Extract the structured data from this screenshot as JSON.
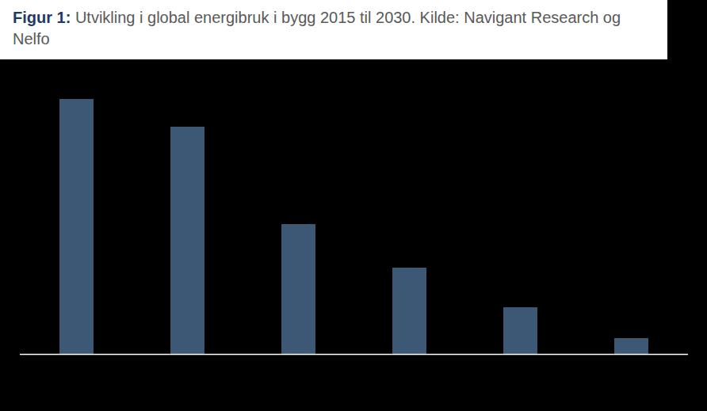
{
  "chart_data": {
    "type": "bar",
    "title": "Figur 1: Utvikling i global energibruk i bygg 2015 til 2030. Kilde: Navigant Research og Nelfo",
    "categories": [
      null,
      null,
      null,
      null,
      null,
      null
    ],
    "values": [
      322,
      287,
      164,
      109,
      59,
      20
    ],
    "color": "#3D5875",
    "ylim": [
      0,
      322
    ],
    "grid": false,
    "tick_labels": false
  }
}
